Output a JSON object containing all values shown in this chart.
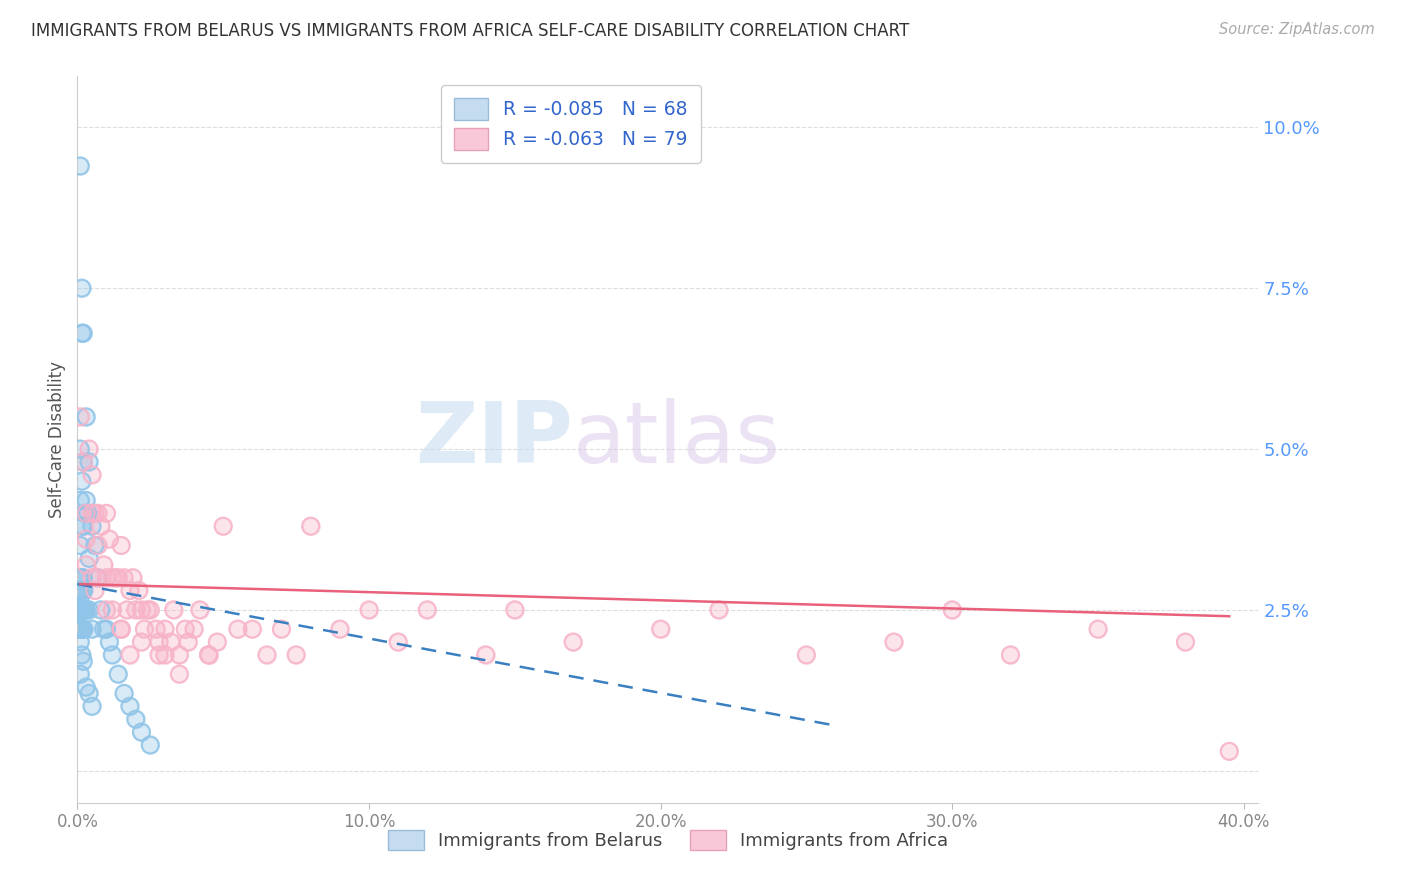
{
  "title": "IMMIGRANTS FROM BELARUS VS IMMIGRANTS FROM AFRICA SELF-CARE DISABILITY CORRELATION CHART",
  "source": "Source: ZipAtlas.com",
  "ylabel": "Self-Care Disability",
  "color_belarus": "#90c4e8",
  "color_africa": "#f7b3c8",
  "color_trendline_belarus": "#3a7fbf",
  "color_trendline_africa": "#e8607a",
  "color_yticks": "#5599ff",
  "color_xticks": "#888888",
  "color_title": "#333333",
  "color_source": "#aaaaaa",
  "watermark_zip": "ZIP",
  "watermark_atlas": "atlas",
  "legend_label1": "Immigrants from Belarus",
  "legend_label2": "Immigrants from Africa",
  "belarus_x": [
    0.0003,
    0.0004,
    0.0005,
    0.0006,
    0.0007,
    0.0007,
    0.0008,
    0.0008,
    0.0009,
    0.0009,
    0.001,
    0.001,
    0.001,
    0.001,
    0.001,
    0.001,
    0.001,
    0.001,
    0.0012,
    0.0012,
    0.0013,
    0.0014,
    0.0015,
    0.0015,
    0.0016,
    0.0016,
    0.0017,
    0.0017,
    0.0018,
    0.0018,
    0.002,
    0.002,
    0.002,
    0.002,
    0.002,
    0.0022,
    0.0022,
    0.0025,
    0.0025,
    0.003,
    0.003,
    0.003,
    0.0035,
    0.004,
    0.004,
    0.004,
    0.005,
    0.005,
    0.006,
    0.007,
    0.008,
    0.009,
    0.01,
    0.011,
    0.012,
    0.014,
    0.016,
    0.018,
    0.02,
    0.022,
    0.025,
    0.001,
    0.001,
    0.0015,
    0.002,
    0.003,
    0.004,
    0.005
  ],
  "belarus_y": [
    0.028,
    0.025,
    0.022,
    0.03,
    0.025,
    0.022,
    0.028,
    0.025,
    0.028,
    0.022,
    0.094,
    0.05,
    0.042,
    0.035,
    0.03,
    0.027,
    0.025,
    0.022,
    0.025,
    0.022,
    0.025,
    0.022,
    0.075,
    0.045,
    0.068,
    0.038,
    0.03,
    0.025,
    0.028,
    0.022,
    0.068,
    0.048,
    0.038,
    0.03,
    0.025,
    0.028,
    0.022,
    0.04,
    0.025,
    0.055,
    0.042,
    0.025,
    0.04,
    0.048,
    0.033,
    0.025,
    0.038,
    0.022,
    0.035,
    0.03,
    0.025,
    0.022,
    0.022,
    0.02,
    0.018,
    0.015,
    0.012,
    0.01,
    0.008,
    0.006,
    0.004,
    0.02,
    0.015,
    0.018,
    0.017,
    0.013,
    0.012,
    0.01
  ],
  "africa_x": [
    0.001,
    0.002,
    0.003,
    0.003,
    0.004,
    0.005,
    0.005,
    0.006,
    0.006,
    0.007,
    0.007,
    0.008,
    0.009,
    0.01,
    0.01,
    0.011,
    0.012,
    0.013,
    0.014,
    0.015,
    0.015,
    0.016,
    0.017,
    0.018,
    0.019,
    0.02,
    0.021,
    0.022,
    0.023,
    0.024,
    0.025,
    0.027,
    0.028,
    0.03,
    0.03,
    0.032,
    0.033,
    0.035,
    0.037,
    0.038,
    0.04,
    0.042,
    0.045,
    0.048,
    0.05,
    0.055,
    0.06,
    0.065,
    0.07,
    0.075,
    0.08,
    0.09,
    0.1,
    0.11,
    0.12,
    0.14,
    0.15,
    0.17,
    0.2,
    0.22,
    0.25,
    0.28,
    0.3,
    0.32,
    0.35,
    0.38,
    0.395,
    0.003,
    0.005,
    0.007,
    0.01,
    0.012,
    0.015,
    0.018,
    0.022,
    0.028,
    0.035,
    0.045
  ],
  "africa_y": [
    0.055,
    0.048,
    0.04,
    0.032,
    0.05,
    0.046,
    0.03,
    0.04,
    0.028,
    0.04,
    0.03,
    0.038,
    0.032,
    0.04,
    0.025,
    0.036,
    0.03,
    0.03,
    0.03,
    0.035,
    0.022,
    0.03,
    0.025,
    0.028,
    0.03,
    0.025,
    0.028,
    0.025,
    0.022,
    0.025,
    0.025,
    0.022,
    0.02,
    0.022,
    0.018,
    0.02,
    0.025,
    0.018,
    0.022,
    0.02,
    0.022,
    0.025,
    0.018,
    0.02,
    0.038,
    0.022,
    0.022,
    0.018,
    0.022,
    0.018,
    0.038,
    0.022,
    0.025,
    0.02,
    0.025,
    0.018,
    0.025,
    0.02,
    0.022,
    0.025,
    0.018,
    0.02,
    0.025,
    0.018,
    0.022,
    0.02,
    0.003,
    0.036,
    0.04,
    0.035,
    0.03,
    0.025,
    0.022,
    0.018,
    0.02,
    0.018,
    0.015,
    0.018
  ],
  "xlim": [
    0.0,
    0.405
  ],
  "ylim": [
    -0.005,
    0.108
  ],
  "yticks": [
    0.0,
    0.025,
    0.05,
    0.075,
    0.1
  ],
  "xticks": [
    0.0,
    0.1,
    0.2,
    0.3,
    0.4
  ]
}
